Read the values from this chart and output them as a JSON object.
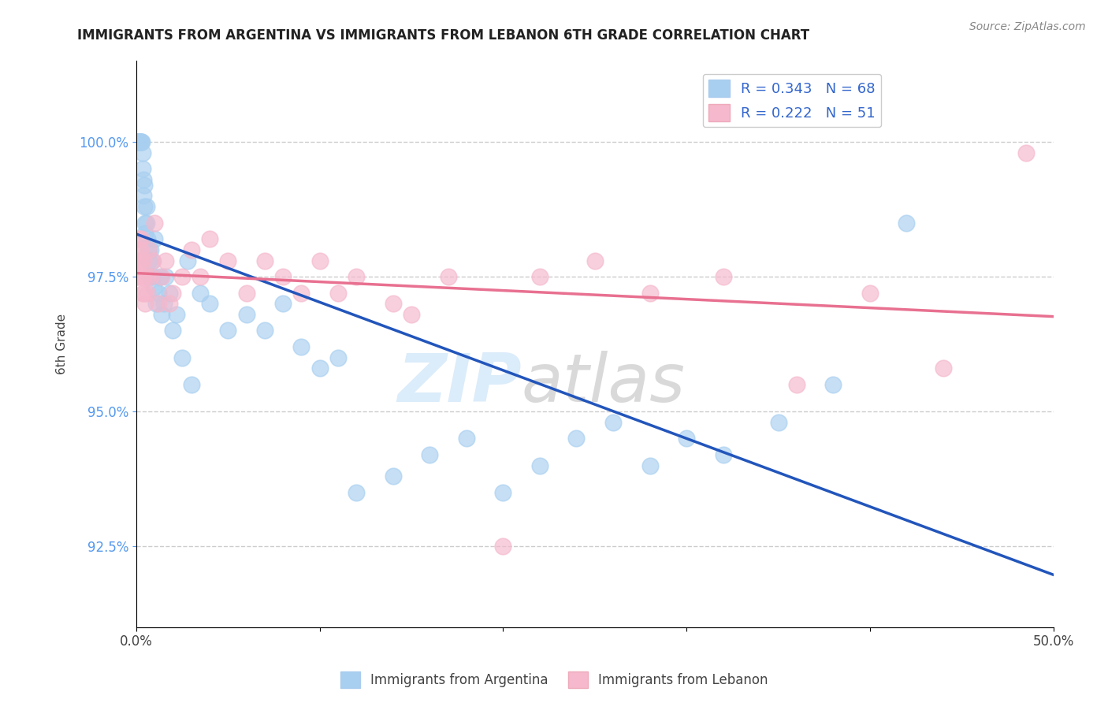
{
  "title": "IMMIGRANTS FROM ARGENTINA VS IMMIGRANTS FROM LEBANON 6TH GRADE CORRELATION CHART",
  "source": "Source: ZipAtlas.com",
  "ylabel": "6th Grade",
  "xlim": [
    0.0,
    50.0
  ],
  "ylim": [
    91.0,
    101.5
  ],
  "xticks": [
    0.0,
    10.0,
    20.0,
    30.0,
    40.0,
    50.0
  ],
  "xticklabels": [
    "0.0%",
    "",
    "",
    "",
    "",
    "50.0%"
  ],
  "yticks": [
    92.5,
    95.0,
    97.5,
    100.0
  ],
  "yticklabels": [
    "92.5%",
    "95.0%",
    "97.5%",
    "100.0%"
  ],
  "argentina_color": "#a8cff0",
  "lebanon_color": "#f5b8cc",
  "argentina_line_color": "#2255bb",
  "lebanon_line_color": "#e87090",
  "argentina_R": 0.343,
  "argentina_N": 68,
  "lebanon_R": 0.222,
  "lebanon_N": 51,
  "legend_label_argentina": "Immigrants from Argentina",
  "legend_label_lebanon": "Immigrants from Lebanon",
  "argentina_x": [
    0.05,
    0.07,
    0.08,
    0.1,
    0.12,
    0.13,
    0.15,
    0.17,
    0.18,
    0.2,
    0.22,
    0.25,
    0.28,
    0.3,
    0.33,
    0.35,
    0.38,
    0.4,
    0.42,
    0.45,
    0.48,
    0.5,
    0.55,
    0.58,
    0.6,
    0.65,
    0.7,
    0.75,
    0.8,
    0.85,
    0.9,
    0.95,
    1.0,
    1.1,
    1.2,
    1.3,
    1.4,
    1.5,
    1.6,
    1.8,
    2.0,
    2.2,
    2.5,
    2.8,
    3.0,
    3.5,
    4.0,
    5.0,
    6.0,
    7.0,
    8.0,
    9.0,
    10.0,
    11.0,
    12.0,
    14.0,
    16.0,
    18.0,
    20.0,
    22.0,
    24.0,
    26.0,
    28.0,
    30.0,
    32.0,
    35.0,
    38.0,
    42.0
  ],
  "argentina_y": [
    100.0,
    100.0,
    100.0,
    100.0,
    100.0,
    100.0,
    100.0,
    100.0,
    100.0,
    100.0,
    100.0,
    100.0,
    100.0,
    100.0,
    99.8,
    99.5,
    99.3,
    99.0,
    98.8,
    99.2,
    98.5,
    98.3,
    98.8,
    98.5,
    98.2,
    98.0,
    97.8,
    97.5,
    98.0,
    97.8,
    97.5,
    97.3,
    98.2,
    97.0,
    97.2,
    97.5,
    96.8,
    97.0,
    97.5,
    97.2,
    96.5,
    96.8,
    96.0,
    97.8,
    95.5,
    97.2,
    97.0,
    96.5,
    96.8,
    96.5,
    97.0,
    96.2,
    95.8,
    96.0,
    93.5,
    93.8,
    94.2,
    94.5,
    93.5,
    94.0,
    94.5,
    94.8,
    94.0,
    94.5,
    94.2,
    94.8,
    95.5,
    98.5
  ],
  "lebanon_x": [
    0.05,
    0.08,
    0.1,
    0.13,
    0.16,
    0.18,
    0.2,
    0.23,
    0.25,
    0.28,
    0.3,
    0.33,
    0.38,
    0.4,
    0.45,
    0.5,
    0.55,
    0.6,
    0.7,
    0.8,
    0.9,
    1.0,
    1.2,
    1.4,
    1.6,
    1.8,
    2.0,
    2.5,
    3.0,
    3.5,
    4.0,
    5.0,
    6.0,
    7.0,
    8.0,
    9.0,
    10.0,
    11.0,
    12.0,
    14.0,
    15.0,
    17.0,
    20.0,
    22.0,
    25.0,
    28.0,
    32.0,
    36.0,
    40.0,
    44.0,
    48.5
  ],
  "lebanon_y": [
    97.5,
    97.8,
    97.5,
    98.2,
    98.0,
    97.8,
    97.5,
    98.0,
    98.2,
    97.8,
    97.5,
    97.2,
    97.5,
    97.8,
    97.2,
    97.0,
    97.5,
    97.2,
    98.0,
    97.5,
    97.8,
    98.5,
    97.0,
    97.5,
    97.8,
    97.0,
    97.2,
    97.5,
    98.0,
    97.5,
    98.2,
    97.8,
    97.2,
    97.8,
    97.5,
    97.2,
    97.8,
    97.2,
    97.5,
    97.0,
    96.8,
    97.5,
    92.5,
    97.5,
    97.8,
    97.2,
    97.5,
    95.5,
    97.2,
    95.8,
    99.8
  ]
}
